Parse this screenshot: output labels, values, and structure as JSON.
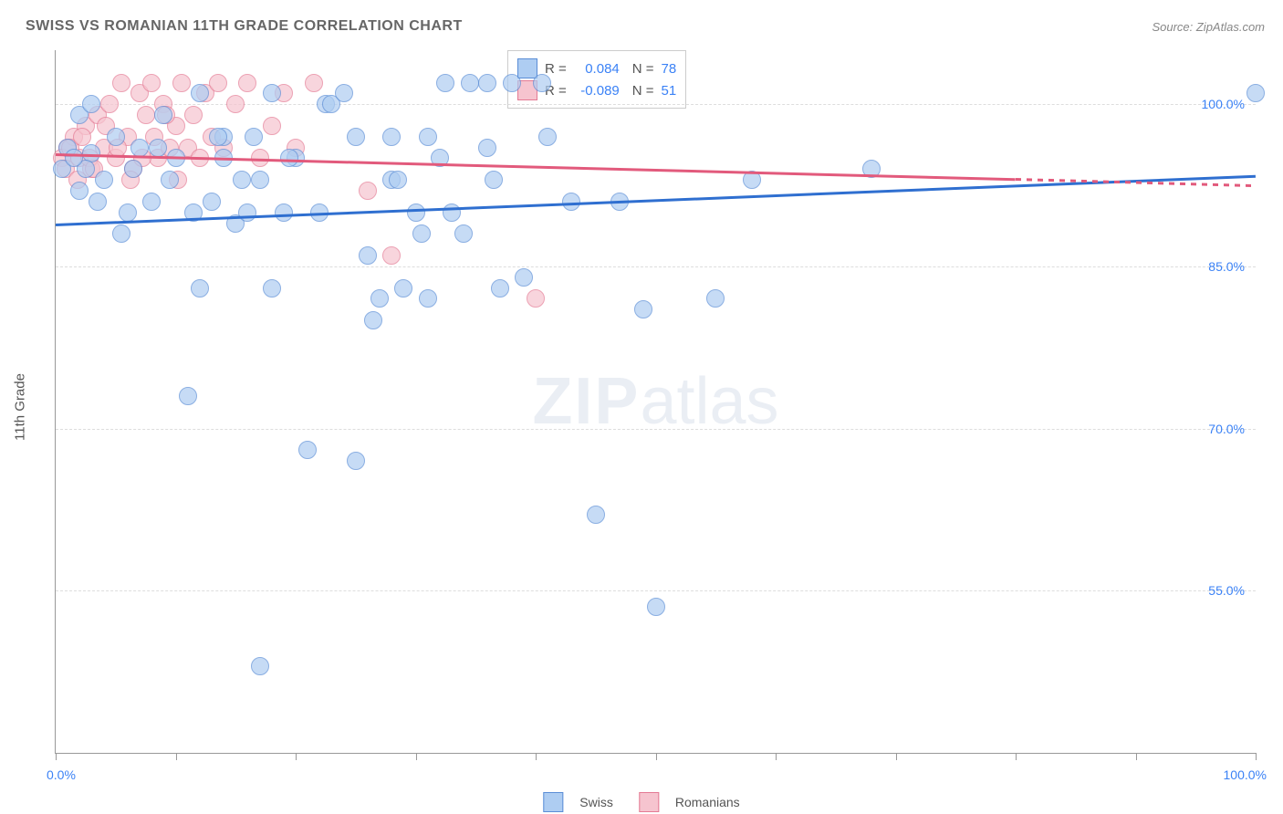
{
  "title": "SWISS VS ROMANIAN 11TH GRADE CORRELATION CHART",
  "source": "Source: ZipAtlas.com",
  "y_axis_title": "11th Grade",
  "watermark_bold": "ZIP",
  "watermark_light": "atlas",
  "legend": {
    "swiss": "Swiss",
    "romanians": "Romanians"
  },
  "stats": {
    "swiss": {
      "r_label": "R =",
      "r": "0.084",
      "n_label": "N =",
      "n": "78"
    },
    "romanian": {
      "r_label": "R =",
      "r": "-0.089",
      "n_label": "N =",
      "n": "51"
    }
  },
  "chart": {
    "type": "scatter",
    "xlim": [
      0,
      100
    ],
    "ylim": [
      40,
      105
    ],
    "y_ticks": [
      55.0,
      70.0,
      85.0,
      100.0
    ],
    "y_tick_labels": [
      "55.0%",
      "70.0%",
      "85.0%",
      "100.0%"
    ],
    "x_ticks": [
      0,
      10,
      20,
      30,
      40,
      50,
      60,
      70,
      80,
      90,
      100
    ],
    "x_label_min": "0.0%",
    "x_label_max": "100.0%",
    "colors": {
      "swiss_fill": "#aecdf2",
      "swiss_stroke": "#5a8dd6",
      "romanian_fill": "#f6c4cf",
      "romanian_stroke": "#e47a94",
      "swiss_line": "#2f6fd0",
      "romanian_line": "#e25a7c",
      "grid": "#dddddd",
      "axis": "#999999",
      "tick_text": "#3b82f6",
      "background": "#ffffff"
    },
    "point_radius": 9,
    "point_opacity": 0.7,
    "trend_lines": {
      "swiss": {
        "x1": 0,
        "y1": 89,
        "x2": 100,
        "y2": 93.5
      },
      "romanian": {
        "x1": 0,
        "y1": 95.5,
        "x2": 80,
        "y2": 93.2,
        "dash_x1": 80,
        "dash_y1": 93.2,
        "dash_x2": 100,
        "dash_y2": 92.6
      }
    },
    "swiss_points": [
      [
        100,
        101
      ],
      [
        38,
        102
      ],
      [
        34.5,
        102
      ],
      [
        36,
        102
      ],
      [
        40.5,
        102
      ],
      [
        32.5,
        102
      ],
      [
        18,
        101
      ],
      [
        22.5,
        100
      ],
      [
        25,
        97
      ],
      [
        28,
        93
      ],
      [
        31,
        97
      ],
      [
        33,
        90
      ],
      [
        36,
        96
      ],
      [
        37,
        83
      ],
      [
        39,
        84
      ],
      [
        41,
        97
      ],
      [
        45,
        62
      ],
      [
        49,
        81
      ],
      [
        50,
        53.5
      ],
      [
        3,
        95.5
      ],
      [
        4,
        93
      ],
      [
        5,
        97
      ],
      [
        6,
        90
      ],
      [
        7,
        96
      ],
      [
        8,
        91
      ],
      [
        9,
        99
      ],
      [
        10,
        95
      ],
      [
        11,
        73
      ],
      [
        12,
        83
      ],
      [
        13,
        91
      ],
      [
        14,
        97
      ],
      [
        15,
        89
      ],
      [
        16,
        90
      ],
      [
        17,
        93
      ],
      [
        18,
        83
      ],
      [
        19,
        90
      ],
      [
        20,
        95
      ],
      [
        21,
        68
      ],
      [
        22,
        90
      ],
      [
        23,
        100
      ],
      [
        24,
        101
      ],
      [
        25,
        67
      ],
      [
        26,
        86
      ],
      [
        27,
        82
      ],
      [
        28,
        97
      ],
      [
        29,
        83
      ],
      [
        30,
        90
      ],
      [
        31,
        82
      ],
      [
        32,
        95
      ],
      [
        17,
        48
      ],
      [
        2,
        92
      ],
      [
        2.5,
        94
      ],
      [
        3.5,
        91
      ],
      [
        1,
        96
      ],
      [
        0.5,
        94
      ],
      [
        1.5,
        95
      ],
      [
        5.5,
        88
      ],
      [
        6.5,
        94
      ],
      [
        8.5,
        96
      ],
      [
        9.5,
        93
      ],
      [
        11.5,
        90
      ],
      [
        13.5,
        97
      ],
      [
        15.5,
        93
      ],
      [
        19.5,
        95
      ],
      [
        43,
        91
      ],
      [
        47,
        91
      ],
      [
        55,
        82
      ],
      [
        58,
        93
      ],
      [
        68,
        94
      ],
      [
        2,
        99
      ],
      [
        3,
        100
      ],
      [
        12,
        101
      ],
      [
        14,
        95
      ],
      [
        16.5,
        97
      ],
      [
        26.5,
        80
      ],
      [
        28.5,
        93
      ],
      [
        30.5,
        88
      ],
      [
        34,
        88
      ],
      [
        36.5,
        93
      ]
    ],
    "romanian_points": [
      [
        1,
        96
      ],
      [
        1.5,
        97
      ],
      [
        2,
        95
      ],
      [
        2.5,
        98
      ],
      [
        3,
        94
      ],
      [
        3.5,
        99
      ],
      [
        4,
        96
      ],
      [
        4.5,
        100
      ],
      [
        5,
        95
      ],
      [
        5.5,
        102
      ],
      [
        6,
        97
      ],
      [
        6.5,
        94
      ],
      [
        7,
        101
      ],
      [
        7.5,
        99
      ],
      [
        8,
        102
      ],
      [
        8.5,
        95
      ],
      [
        9,
        100
      ],
      [
        9.5,
        96
      ],
      [
        10,
        98
      ],
      [
        10.5,
        102
      ],
      [
        11,
        96
      ],
      [
        11.5,
        99
      ],
      [
        12,
        95
      ],
      [
        12.5,
        101
      ],
      [
        13,
        97
      ],
      [
        13.5,
        102
      ],
      [
        14,
        96
      ],
      [
        15,
        100
      ],
      [
        16,
        102
      ],
      [
        17,
        95
      ],
      [
        18,
        98
      ],
      [
        19,
        101
      ],
      [
        20,
        96
      ],
      [
        21.5,
        102
      ],
      [
        26,
        92
      ],
      [
        28,
        86
      ],
      [
        40,
        82
      ],
      [
        0.5,
        95
      ],
      [
        0.8,
        94
      ],
      [
        1.2,
        96
      ],
      [
        1.8,
        93
      ],
      [
        2.2,
        97
      ],
      [
        2.8,
        95
      ],
      [
        3.2,
        94
      ],
      [
        4.2,
        98
      ],
      [
        5.2,
        96
      ],
      [
        6.2,
        93
      ],
      [
        7.2,
        95
      ],
      [
        8.2,
        97
      ],
      [
        9.2,
        99
      ],
      [
        10.2,
        93
      ]
    ]
  }
}
